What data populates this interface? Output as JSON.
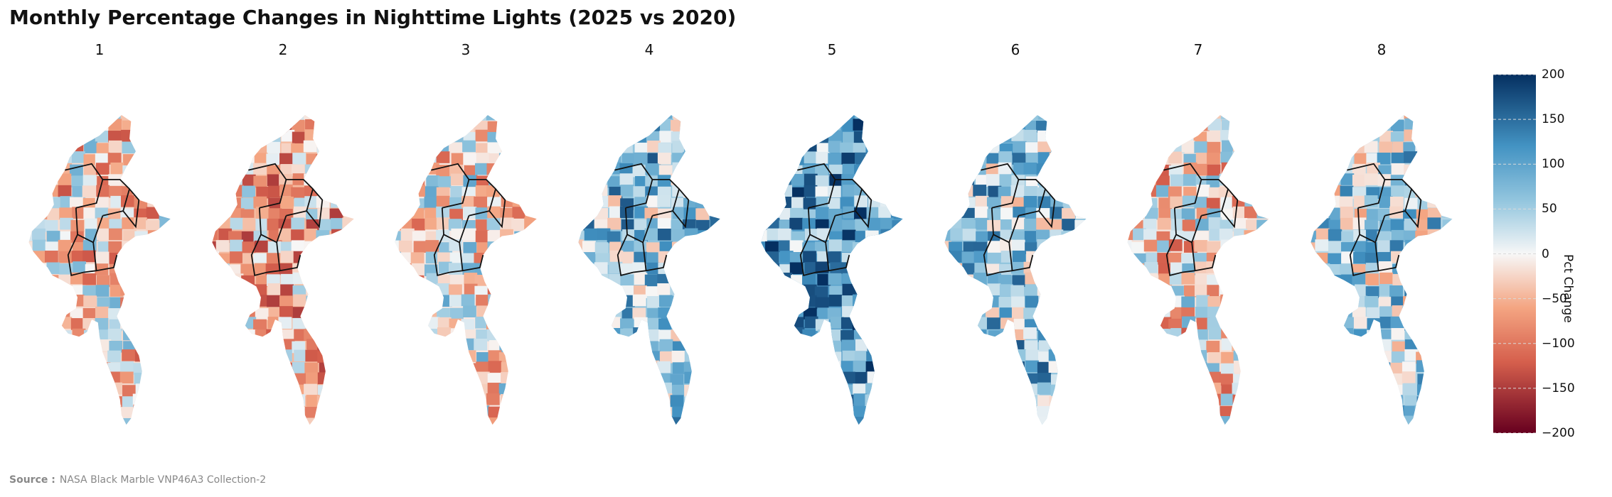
{
  "title": "Monthly Percentage Changes in Nighttime Lights (2025 vs 2020)",
  "source_label": "Source :",
  "source_text": "NASA Black Marble VNP46A3 Collection-2",
  "colors": {
    "neg_strong": "#67001f",
    "neg_mid": "#d6604d",
    "neg_light": "#f4a582",
    "neutral": "#f7f7f7",
    "pos_light": "#92c5de",
    "pos_mid": "#4393c3",
    "pos_strong": "#053061"
  },
  "chart_data": {
    "type": "heatmap",
    "title": "Monthly Percentage Changes in Nighttime Lights (2025 vs 2020)",
    "panels": [
      {
        "label": "1",
        "month": 1,
        "mean_change": -20
      },
      {
        "label": "2",
        "month": 2,
        "mean_change": -45
      },
      {
        "label": "3",
        "month": 3,
        "mean_change": -10
      },
      {
        "label": "4",
        "month": 4,
        "mean_change": 60
      },
      {
        "label": "5",
        "month": 5,
        "mean_change": 110
      },
      {
        "label": "6",
        "month": 6,
        "mean_change": 60
      },
      {
        "label": "7",
        "month": 7,
        "mean_change": -15
      },
      {
        "label": "8",
        "month": 8,
        "mean_change": 40
      }
    ],
    "colorbar": {
      "label": "Pct Change",
      "range": [
        -200,
        200
      ],
      "ticks": [
        200,
        150,
        100,
        50,
        0,
        -50,
        -100,
        -150,
        -200
      ],
      "colormap": "RdBu"
    }
  }
}
